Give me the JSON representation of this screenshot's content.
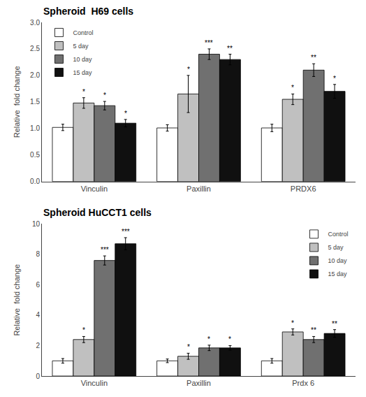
{
  "chart_data": [
    {
      "type": "bar",
      "title": "Spheroid  H69 cells",
      "categories": [
        "Vinculin",
        "Paxillin",
        "PRDX6"
      ],
      "series": [
        {
          "name": "Control",
          "color": "#ffffff",
          "values": [
            1.02,
            1.01,
            1.01
          ],
          "errors": [
            0.06,
            0.06,
            0.07
          ]
        },
        {
          "name": "5 day",
          "color": "#c0c0c0",
          "values": [
            1.48,
            1.65,
            1.55
          ],
          "errors": [
            0.1,
            0.35,
            0.1
          ],
          "annotations": [
            "*",
            "*",
            "*"
          ]
        },
        {
          "name": "10 day",
          "color": "#707070",
          "values": [
            1.43,
            2.4,
            2.1
          ],
          "errors": [
            0.08,
            0.1,
            0.12
          ],
          "annotations": [
            "*",
            "***",
            "**"
          ]
        },
        {
          "name": "15 day",
          "color": "#101010",
          "values": [
            1.1,
            2.3,
            1.7
          ],
          "errors": [
            0.07,
            0.1,
            0.13
          ],
          "annotations": [
            "*",
            "**",
            "*"
          ]
        }
      ],
      "ylabel": "Relative  fold change",
      "ylim": [
        0,
        3.0
      ],
      "yticks": [
        {
          "value": 0,
          "label": "0.0"
        },
        0.5,
        {
          "value": 1.0,
          "label": "1.0"
        },
        1.5,
        {
          "value": 2.0,
          "label": "2.0"
        },
        2.5,
        {
          "value": 3.0,
          "label": "3.0"
        }
      ],
      "grid": false,
      "legend": "upper left"
    },
    {
      "type": "bar",
      "title": "Spheroid HuCCT1 cells",
      "categories": [
        "Vinculin",
        "Paxillin",
        "Prdx 6"
      ],
      "series": [
        {
          "name": "Control",
          "color": "#ffffff",
          "values": [
            1.0,
            1.0,
            1.0
          ],
          "errors": [
            0.15,
            0.12,
            0.15
          ]
        },
        {
          "name": "5 day",
          "color": "#c0c0c0",
          "values": [
            2.4,
            1.3,
            2.9
          ],
          "errors": [
            0.2,
            0.2,
            0.2
          ],
          "annotations": [
            "*",
            "*",
            "*"
          ]
        },
        {
          "name": "10 day",
          "color": "#707070",
          "values": [
            7.6,
            1.85,
            2.4
          ],
          "errors": [
            0.3,
            0.18,
            0.2
          ],
          "annotations": [
            "***",
            "*",
            "**"
          ]
        },
        {
          "name": "15 day",
          "color": "#101010",
          "values": [
            8.7,
            1.85,
            2.8
          ],
          "errors": [
            0.4,
            0.15,
            0.25
          ],
          "annotations": [
            "***",
            "*",
            "**"
          ]
        }
      ],
      "ylabel": "Relative  fold change",
      "ylim": [
        0,
        10
      ],
      "yticks": [
        0,
        2,
        4,
        6,
        8,
        10
      ],
      "grid": false,
      "legend": "upper right"
    }
  ]
}
